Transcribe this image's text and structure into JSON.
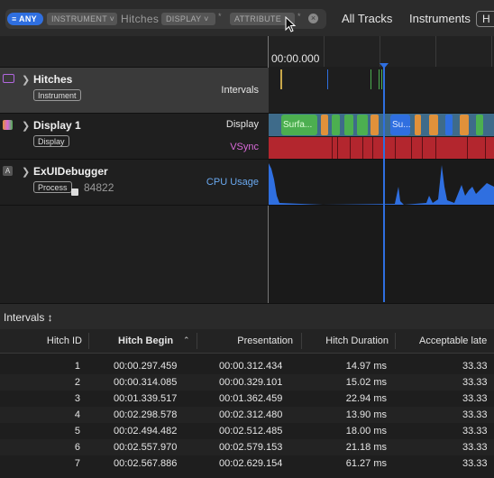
{
  "filter": {
    "any_label": "ANY",
    "instrument_token": "INSTRUMENT",
    "instrument_value": "Hitches",
    "display_token": "DISPLAY",
    "attribute_token": "ATTRIBUTE"
  },
  "nav": {
    "all_tracks": "All Tracks",
    "instruments": "Instruments",
    "partial": "H"
  },
  "ruler": {
    "time": "00:00.000"
  },
  "tracks": [
    {
      "name": "Hitches",
      "badge": "Instrument",
      "right_label": "Intervals",
      "right_color": "#e6e6e6"
    },
    {
      "name": "Display 1",
      "badge": "Display",
      "right_label": "Display",
      "right_label_2": "VSync",
      "right_color": "#e6e6e6",
      "right_color_2": "#d96ad9"
    },
    {
      "name": "ExUIDebugger",
      "badge": "Process",
      "pid": "84822",
      "right_label": "CPU Usage",
      "right_color": "#6aa9f0"
    }
  ],
  "display_labels": [
    "Surfa...",
    "Su..."
  ],
  "panel": {
    "intervals_label": "Intervals ↕"
  },
  "table": {
    "headers": [
      "Hitch ID",
      "Hitch Begin",
      "Presentation",
      "Hitch Duration",
      "Acceptable late"
    ],
    "rows": [
      [
        "1",
        "00:00.297.459",
        "00:00.312.434",
        "14.97 ms",
        "33.33"
      ],
      [
        "2",
        "00:00.314.085",
        "00:00.329.101",
        "15.02 ms",
        "33.33"
      ],
      [
        "3",
        "00:01.339.517",
        "00:01.362.459",
        "22.94 ms",
        "33.33"
      ],
      [
        "4",
        "00:02.298.578",
        "00:02.312.480",
        "13.90 ms",
        "33.33"
      ],
      [
        "5",
        "00:02.494.482",
        "00:02.512.485",
        "18.00 ms",
        "33.33"
      ],
      [
        "6",
        "00:02.557.970",
        "00:02.579.153",
        "21.18 ms",
        "33.33"
      ],
      [
        "7",
        "00:02.567.886",
        "00:02.629.154",
        "61.27 ms",
        "33.33"
      ]
    ]
  },
  "colors": {
    "accent": "#2f6fe0",
    "vsync": "#b3262e",
    "display_green": "#4caf50",
    "cpu": "#2f6fe0",
    "orange": "#e0913a"
  }
}
